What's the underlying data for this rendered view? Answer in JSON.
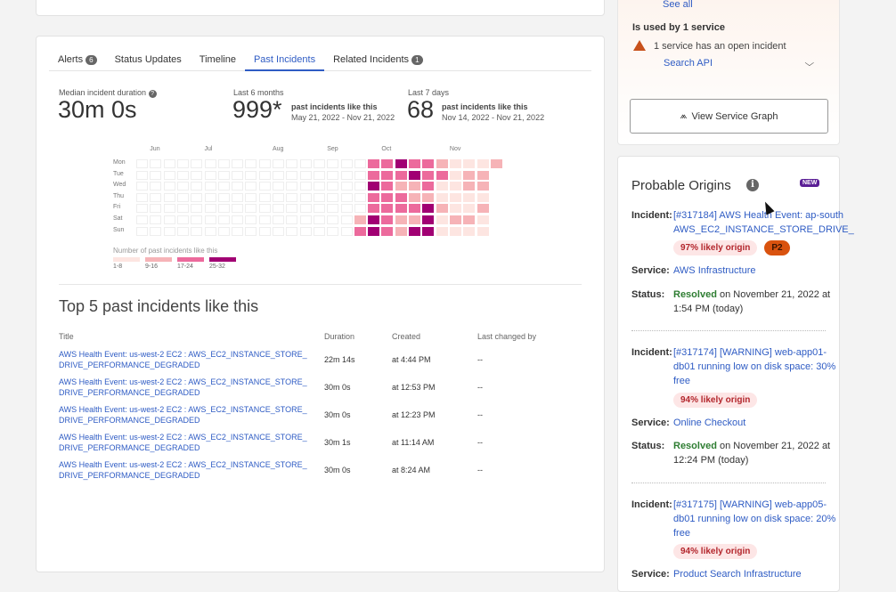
{
  "tabs": [
    {
      "label": "Alerts",
      "badge": "6"
    },
    {
      "label": "Status Updates"
    },
    {
      "label": "Timeline"
    },
    {
      "label": "Past Incidents",
      "active": true
    },
    {
      "label": "Related Incidents",
      "badge": "1"
    }
  ],
  "stats": {
    "median_label": "Median incident duration",
    "median_value": "30m 0s",
    "six_label": "Last 6 months",
    "six_value": "999*",
    "six_desc": "past incidents like this",
    "six_range": "May 21, 2022 - Nov 21, 2022",
    "seven_label": "Last 7 days",
    "seven_value": "68",
    "seven_desc": "past incidents like this",
    "seven_range": "Nov 14, 2022 - Nov 21, 2022"
  },
  "chart_data": {
    "type": "heatmap",
    "days": [
      "Mon",
      "Tue",
      "Wed",
      "Thu",
      "Fri",
      "Sat",
      "Sun"
    ],
    "weeks": 27,
    "months": [
      {
        "label": "Jun",
        "week": 1
      },
      {
        "label": "Jul",
        "week": 5
      },
      {
        "label": "Aug",
        "week": 10
      },
      {
        "label": "Sep",
        "week": 14
      },
      {
        "label": "Oct",
        "week": 18
      },
      {
        "label": "Nov",
        "week": 23
      }
    ],
    "levels": [
      [
        0,
        0,
        0,
        0,
        0,
        0,
        0,
        0,
        0,
        0,
        0,
        0,
        0,
        0,
        0,
        0,
        0,
        3,
        3,
        4,
        3,
        3,
        2,
        1,
        1,
        1,
        2
      ],
      [
        0,
        0,
        0,
        0,
        0,
        0,
        0,
        0,
        0,
        0,
        0,
        0,
        0,
        0,
        0,
        0,
        0,
        3,
        3,
        3,
        4,
        3,
        3,
        1,
        2,
        2
      ],
      [
        0,
        0,
        0,
        0,
        0,
        0,
        0,
        0,
        0,
        0,
        0,
        0,
        0,
        0,
        0,
        0,
        0,
        4,
        3,
        2,
        2,
        3,
        1,
        1,
        2,
        2
      ],
      [
        0,
        0,
        0,
        0,
        0,
        0,
        0,
        0,
        0,
        0,
        0,
        0,
        0,
        0,
        0,
        0,
        0,
        3,
        3,
        3,
        2,
        2,
        1,
        1,
        1,
        1
      ],
      [
        0,
        0,
        0,
        0,
        0,
        0,
        0,
        0,
        0,
        0,
        0,
        0,
        0,
        0,
        0,
        0,
        0,
        3,
        3,
        3,
        3,
        4,
        2,
        1,
        1,
        2
      ],
      [
        0,
        0,
        0,
        0,
        0,
        0,
        0,
        0,
        0,
        0,
        0,
        0,
        0,
        0,
        0,
        0,
        2,
        4,
        3,
        2,
        2,
        4,
        1,
        2,
        2,
        1
      ],
      [
        0,
        0,
        0,
        0,
        0,
        0,
        0,
        0,
        0,
        0,
        0,
        0,
        0,
        0,
        0,
        0,
        3,
        4,
        3,
        2,
        4,
        4,
        1,
        1,
        1,
        1
      ]
    ],
    "legend_title": "Number of past incidents like this",
    "legend": [
      {
        "label": "1-8",
        "color": "#fde5e1"
      },
      {
        "label": "9-16",
        "color": "#f6b3b7"
      },
      {
        "label": "17-24",
        "color": "#ec6a9c"
      },
      {
        "label": "25-32",
        "color": "#a10073"
      }
    ]
  },
  "top5": {
    "heading": "Top 5 past incidents like this",
    "columns": [
      "Title",
      "Duration",
      "Created",
      "Last changed by"
    ],
    "rows": [
      {
        "title": "AWS Health Event: us-west-2 EC2 : AWS_EC2_INSTANCE_STORE_DRIVE_PERFORMANCE_DEGRADED",
        "duration": "22m 14s",
        "created": "at 4:44 PM",
        "changed": "--"
      },
      {
        "title": "AWS Health Event: us-west-2 EC2 : AWS_EC2_INSTANCE_STORE_DRIVE_PERFORMANCE_DEGRADED",
        "duration": "30m 0s",
        "created": "at 12:53 PM",
        "changed": "--"
      },
      {
        "title": "AWS Health Event: us-west-2 EC2 : AWS_EC2_INSTANCE_STORE_DRIVE_PERFORMANCE_DEGRADED",
        "duration": "30m 0s",
        "created": "at 12:23 PM",
        "changed": "--"
      },
      {
        "title": "AWS Health Event: us-west-2 EC2 : AWS_EC2_INSTANCE_STORE_DRIVE_PERFORMANCE_DEGRADED",
        "duration": "30m 1s",
        "created": "at 11:14 AM",
        "changed": "--"
      },
      {
        "title": "AWS Health Event: us-west-2 EC2 : AWS_EC2_INSTANCE_STORE_DRIVE_PERFORMANCE_DEGRADED",
        "duration": "30m 0s",
        "created": "at 8:24 AM",
        "changed": "--"
      }
    ]
  },
  "side": {
    "see_all": "See all",
    "used_by": "Is used by 1 service",
    "open_incident": "1 service has an open incident",
    "service_link": "Search API",
    "graph_button": "View Service Graph"
  },
  "origins": {
    "title": "Probable Origins",
    "new_badge": "NEW",
    "labels": {
      "incident": "Incident:",
      "service": "Service:",
      "status": "Status:"
    },
    "items": [
      {
        "incident": "[#317184] AWS Health Event: ap-south AWS_EC2_INSTANCE_STORE_DRIVE_",
        "likely": "97% likely origin",
        "priority": "P2",
        "service": "AWS Infrastructure",
        "status": "Resolved",
        "status_rest": " on November 21, 2022 at 1:54 PM (today)"
      },
      {
        "incident": "[#317174] [WARNING] web-app01-db01 running low on disk space: 30% free",
        "likely": "94% likely origin",
        "service": "Online Checkout",
        "status": "Resolved",
        "status_rest": " on November 21, 2022 at 12:24 PM (today)"
      },
      {
        "incident": "[#317175] [WARNING] web-app05-db01 running low on disk space: 20% free",
        "likely": "94% likely origin",
        "service": "Product Search Infrastructure"
      }
    ]
  }
}
